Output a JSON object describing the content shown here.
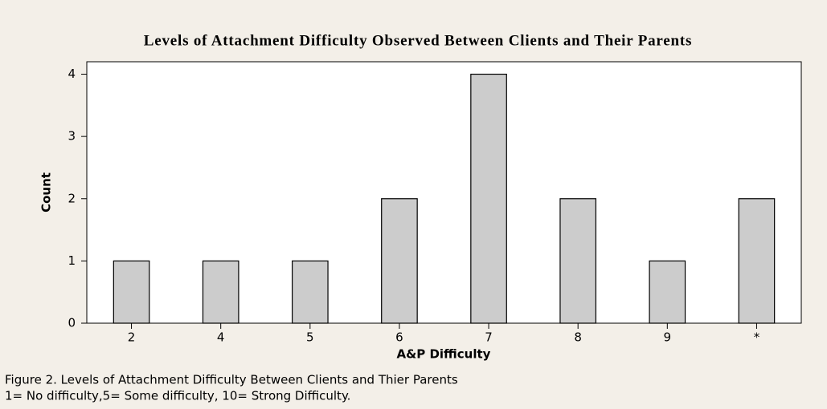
{
  "chart_data": {
    "type": "bar",
    "title": "Levels of Attachment Difficulty Observed Between Clients and Their Parents",
    "x_label": "A&P Difficulty",
    "y_label": "Count",
    "categories": [
      "2",
      "4",
      "5",
      "6",
      "7",
      "8",
      "9",
      "*"
    ],
    "values": [
      1,
      1,
      1,
      2,
      4,
      2,
      1,
      2
    ],
    "color": "#cccccc",
    "ylim": [
      0,
      4.2
    ],
    "yticks": [
      0,
      1,
      2,
      3,
      4
    ],
    "grid": false,
    "caption": [
      "Figure 2. Levels of Attachment Difficulty Between Clients and Thier Parents",
      "1= No difficulty,5= Some difficulty, 10= Strong Difficulty."
    ]
  }
}
